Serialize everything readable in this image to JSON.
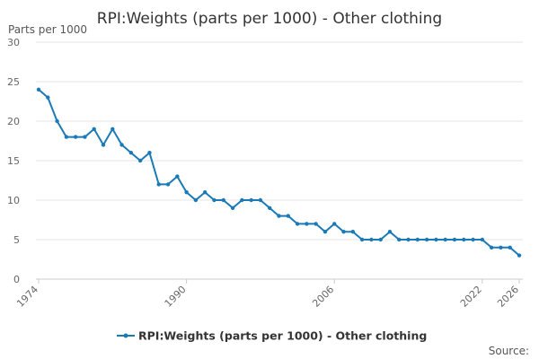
{
  "chart_data": {
    "type": "line",
    "title": "RPI:Weights (parts per 1000) - Other clothing",
    "ylabel": "Parts per 1000",
    "xlabel": "",
    "ylim": [
      0,
      30
    ],
    "yticks": [
      0,
      5,
      10,
      15,
      20,
      25,
      30
    ],
    "xlim": [
      1974,
      2026
    ],
    "xticks": [
      1974,
      1990,
      2006,
      2022,
      2026
    ],
    "grid": true,
    "legend_position": "bottom",
    "source_label": "Source:",
    "series": [
      {
        "name": "RPI:Weights (parts per 1000) - Other clothing",
        "color": "#1a7ab8",
        "x": [
          1974,
          1975,
          1976,
          1977,
          1978,
          1979,
          1980,
          1981,
          1982,
          1983,
          1984,
          1985,
          1986,
          1987,
          1988,
          1989,
          1990,
          1991,
          1992,
          1993,
          1994,
          1995,
          1996,
          1997,
          1998,
          1999,
          2000,
          2001,
          2002,
          2003,
          2004,
          2005,
          2006,
          2007,
          2008,
          2009,
          2010,
          2011,
          2012,
          2013,
          2014,
          2015,
          2016,
          2017,
          2018,
          2019,
          2020,
          2021,
          2022,
          2023,
          2024,
          2025,
          2026
        ],
        "values": [
          24,
          23,
          20,
          18,
          18,
          18,
          19,
          17,
          19,
          17,
          16,
          15,
          16,
          12,
          12,
          13,
          11,
          10,
          11,
          10,
          10,
          9,
          10,
          10,
          10,
          9,
          8,
          8,
          7,
          7,
          7,
          6,
          7,
          6,
          6,
          5,
          5,
          5,
          6,
          5,
          5,
          5,
          5,
          5,
          5,
          5,
          5,
          5,
          5,
          4,
          4,
          4,
          3
        ]
      }
    ]
  }
}
